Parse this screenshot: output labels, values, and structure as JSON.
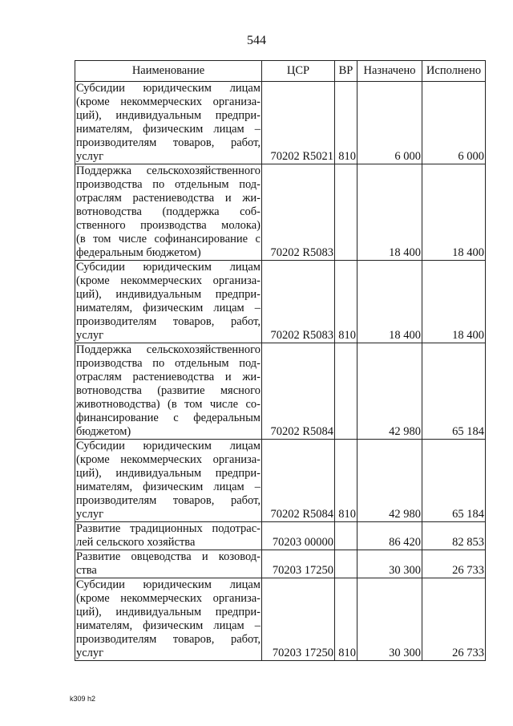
{
  "page_number": "544",
  "table": {
    "headers": {
      "name": "Наименование",
      "csr": "ЦСР",
      "vr": "ВР",
      "assigned": "Назначено",
      "executed": "Исполнено"
    },
    "rows": [
      {
        "name_lines": [
          "Субсидии юридическим лицам",
          "(кроме некоммерческих организа-",
          "ций), индивидуальным предпри-",
          "нимателям, физическим лицам –",
          "производителям товаров, работ,",
          "услуг"
        ],
        "csr": "70202 R5021",
        "vr": "810",
        "assigned": "6 000",
        "executed": "6 000"
      },
      {
        "name_lines": [
          "Поддержка сельскохозяйственного",
          "производства по отдельным под-",
          "отраслям растениеводства и жи-",
          "вотноводства (поддержка соб-",
          "ственного производства молока)",
          "(в том числе софинансирование с",
          "федеральным бюджетом)"
        ],
        "csr": "70202 R5083",
        "vr": "",
        "assigned": "18 400",
        "executed": "18 400"
      },
      {
        "name_lines": [
          "Субсидии юридическим лицам",
          "(кроме некоммерческих организа-",
          "ций), индивидуальным предпри-",
          "нимателям, физическим лицам –",
          "производителям товаров, работ,",
          "услуг"
        ],
        "csr": "70202 R5083",
        "vr": "810",
        "assigned": "18 400",
        "executed": "18 400"
      },
      {
        "name_lines": [
          "Поддержка сельскохозяйственного",
          "производства по отдельным под-",
          "отраслям растениеводства и жи-",
          "вотноводства (развитие мясного",
          "животноводства) (в том числе со-",
          "финансирование с федеральным",
          "бюджетом)"
        ],
        "csr": "70202 R5084",
        "vr": "",
        "assigned": "42 980",
        "executed": "65 184"
      },
      {
        "name_lines": [
          "Субсидии юридическим лицам",
          "(кроме некоммерческих организа-",
          "ций), индивидуальным предпри-",
          "нимателям, физическим лицам –",
          "производителям товаров, работ,",
          "услуг"
        ],
        "csr": "70202 R5084",
        "vr": "810",
        "assigned": "42 980",
        "executed": "65 184"
      },
      {
        "name_lines": [
          "Развитие традиционных подотрас-",
          "лей сельского хозяйства"
        ],
        "csr": "70203 00000",
        "vr": "",
        "assigned": "86 420",
        "executed": "82 853"
      },
      {
        "name_lines": [
          "Развитие овцеводства и козовод-",
          "ства"
        ],
        "csr": "70203 17250",
        "vr": "",
        "assigned": "30 300",
        "executed": "26 733"
      },
      {
        "name_lines": [
          "Субсидии юридическим лицам",
          "(кроме некоммерческих организа-",
          "ций), индивидуальным предпри-",
          "нимателям, физическим лицам –",
          "производителям товаров, работ,",
          "услуг"
        ],
        "csr": "70203 17250",
        "vr": "810",
        "assigned": "30 300",
        "executed": "26 733"
      }
    ]
  },
  "footer": "k309 h2"
}
